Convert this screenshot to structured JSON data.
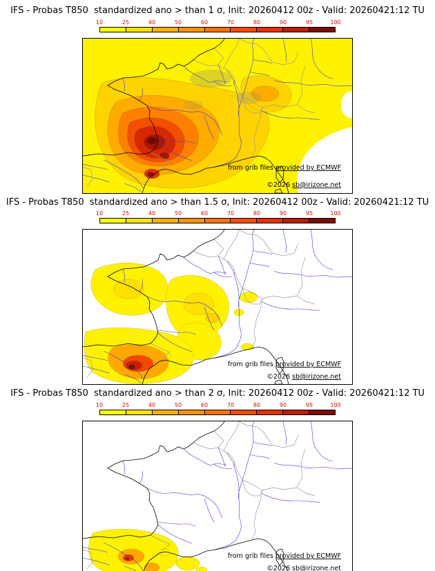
{
  "page": {
    "background": "#ffffff"
  },
  "colorbar": {
    "ticks": [
      "10",
      "25",
      "40",
      "50",
      "60",
      "70",
      "80",
      "90",
      "95",
      "100"
    ],
    "segment_colors": [
      "#ffff00",
      "#ffe300",
      "#ffb000",
      "#ff9400",
      "#ff7300",
      "#ff4d00",
      "#e63000",
      "#bc1c00",
      "#7c0c00"
    ],
    "tick_color": "#cc1100"
  },
  "panels": [
    {
      "title": "IFS - Probas T850  standardized ano > than 1 σ, Init: 20260412 00z - Valid: 20260421:12 TU"
    },
    {
      "title": "IFS - Probas T850  standardized ano > than 1.5 σ, Init: 20260412 00z - Valid: 20260421:12 TU"
    },
    {
      "title": "IFS - Probas T850  standardized ano > than 2 σ, Init: 20260412 00z - Valid: 20260421:12 TU"
    }
  ],
  "attribution": {
    "prefix": "from grib files ",
    "provider_link": "provided by ECMWF",
    "copyright": "©2026 ",
    "site_link": "sb@irizone.net"
  },
  "map_style": {
    "sea": "#ffffff",
    "coastline": "#000000",
    "borders": "#9a9a9a",
    "rivers": "#3c3cd2"
  }
}
